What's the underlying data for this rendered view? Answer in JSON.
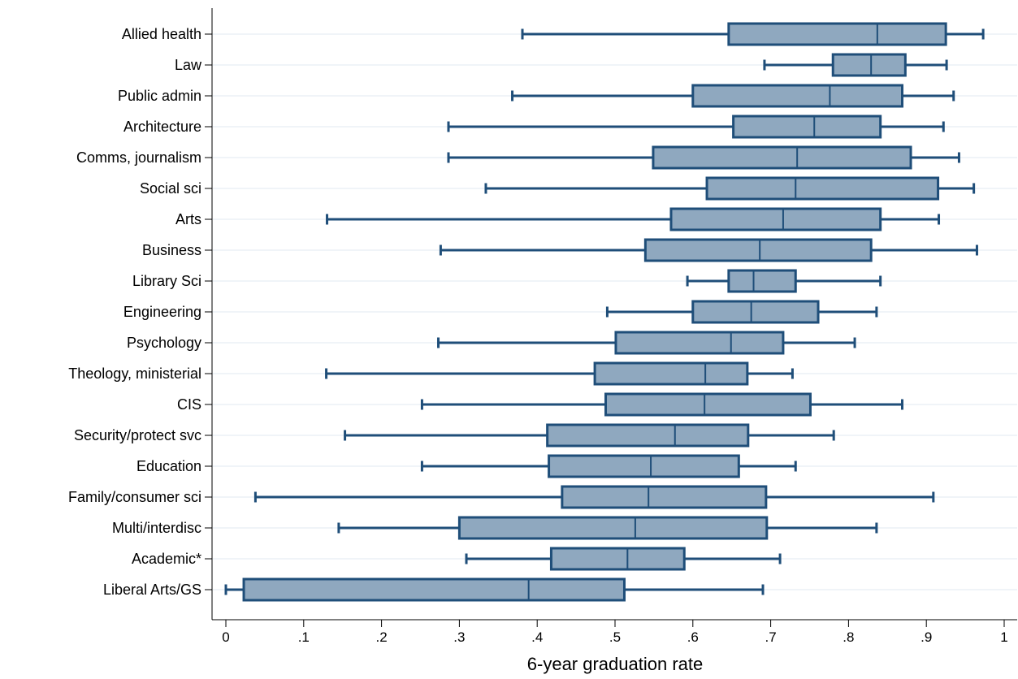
{
  "chart_data": {
    "type": "box",
    "xlabel": "6-year graduation rate",
    "xlim": [
      0,
      1
    ],
    "x_ticks": [
      {
        "value": 0,
        "label": "0"
      },
      {
        "value": 0.1,
        "label": ".1"
      },
      {
        "value": 0.2,
        "label": ".2"
      },
      {
        "value": 0.3,
        "label": ".3"
      },
      {
        "value": 0.4,
        "label": ".4"
      },
      {
        "value": 0.5,
        "label": ".5"
      },
      {
        "value": 0.6,
        "label": ".6"
      },
      {
        "value": 0.7,
        "label": ".7"
      },
      {
        "value": 0.8,
        "label": ".8"
      },
      {
        "value": 0.9,
        "label": ".9"
      },
      {
        "value": 1,
        "label": "1"
      }
    ],
    "grid": "horizontal",
    "orientation": "horizontal",
    "colors": {
      "box_fill": "#8fa8bf",
      "box_stroke": "#1f4e79",
      "grid": "#e8eef3",
      "axis": "#000000"
    },
    "categories": [
      {
        "label": "Allied health",
        "min": 0.381,
        "q1": 0.646,
        "median": 0.837,
        "q3": 0.925,
        "max": 0.973
      },
      {
        "label": "Law",
        "min": 0.692,
        "q1": 0.78,
        "median": 0.829,
        "q3": 0.873,
        "max": 0.926
      },
      {
        "label": "Public admin",
        "min": 0.368,
        "q1": 0.6,
        "median": 0.776,
        "q3": 0.869,
        "max": 0.935
      },
      {
        "label": "Architecture",
        "min": 0.286,
        "q1": 0.652,
        "median": 0.756,
        "q3": 0.841,
        "max": 0.922
      },
      {
        "label": "Comms, journalism",
        "min": 0.286,
        "q1": 0.549,
        "median": 0.734,
        "q3": 0.88,
        "max": 0.942
      },
      {
        "label": "Social sci",
        "min": 0.334,
        "q1": 0.618,
        "median": 0.732,
        "q3": 0.915,
        "max": 0.961
      },
      {
        "label": "Arts",
        "min": 0.13,
        "q1": 0.572,
        "median": 0.716,
        "q3": 0.841,
        "max": 0.916
      },
      {
        "label": "Business",
        "min": 0.276,
        "q1": 0.539,
        "median": 0.686,
        "q3": 0.829,
        "max": 0.965
      },
      {
        "label": "Library Sci",
        "min": 0.593,
        "q1": 0.646,
        "median": 0.678,
        "q3": 0.732,
        "max": 0.841
      },
      {
        "label": "Engineering",
        "min": 0.49,
        "q1": 0.6,
        "median": 0.675,
        "q3": 0.761,
        "max": 0.836
      },
      {
        "label": "Psychology",
        "min": 0.273,
        "q1": 0.501,
        "median": 0.649,
        "q3": 0.716,
        "max": 0.808
      },
      {
        "label": "Theology, ministerial",
        "min": 0.129,
        "q1": 0.474,
        "median": 0.616,
        "q3": 0.67,
        "max": 0.728
      },
      {
        "label": "CIS",
        "min": 0.252,
        "q1": 0.488,
        "median": 0.615,
        "q3": 0.751,
        "max": 0.869
      },
      {
        "label": "Security/protect svc",
        "min": 0.153,
        "q1": 0.413,
        "median": 0.577,
        "q3": 0.671,
        "max": 0.781
      },
      {
        "label": "Education",
        "min": 0.252,
        "q1": 0.415,
        "median": 0.546,
        "q3": 0.659,
        "max": 0.732
      },
      {
        "label": "Family/consumer sci",
        "min": 0.038,
        "q1": 0.432,
        "median": 0.543,
        "q3": 0.694,
        "max": 0.909
      },
      {
        "label": "Multi/interdisc",
        "min": 0.145,
        "q1": 0.3,
        "median": 0.526,
        "q3": 0.695,
        "max": 0.836
      },
      {
        "label": "Academic*",
        "min": 0.309,
        "q1": 0.418,
        "median": 0.516,
        "q3": 0.589,
        "max": 0.712
      },
      {
        "label": "Liberal Arts/GS",
        "min": 0.0,
        "q1": 0.023,
        "median": 0.389,
        "q3": 0.512,
        "max": 0.69
      }
    ]
  }
}
